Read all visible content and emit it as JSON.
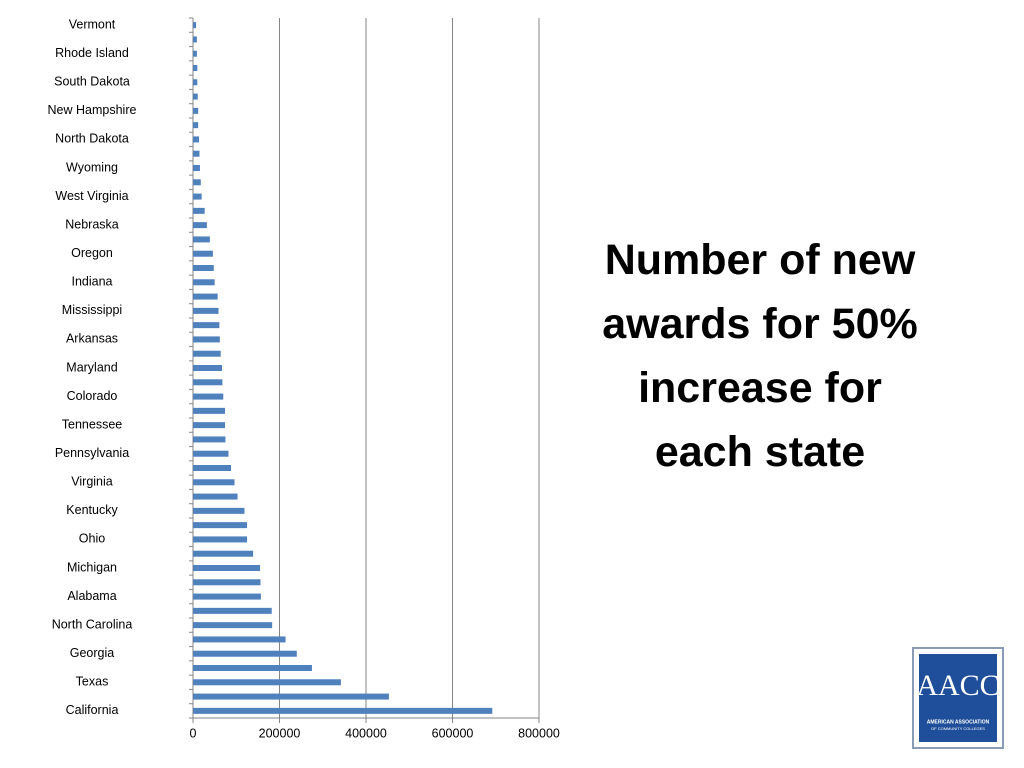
{
  "chart_data": {
    "type": "barh",
    "title": "Number of new awards for 50% increase for each state",
    "categories": [
      "Vermont",
      null,
      "Rhode Island",
      null,
      "South Dakota",
      null,
      "New Hampshire",
      null,
      "North Dakota",
      null,
      "Wyoming",
      null,
      "West Virginia",
      null,
      "Nebraska",
      null,
      "Oregon",
      null,
      "Indiana",
      null,
      "Mississippi",
      null,
      "Arkansas",
      null,
      "Maryland",
      null,
      "Colorado",
      null,
      "Tennessee",
      null,
      "Pennsylvania",
      null,
      "Virginia",
      null,
      "Kentucky",
      null,
      "Ohio",
      null,
      "Michigan",
      null,
      "Alabama",
      null,
      "North Carolina",
      null,
      "Georgia",
      null,
      "Texas",
      null,
      "California"
    ],
    "values": [
      7000,
      9000,
      9000,
      10000,
      10000,
      11000,
      12000,
      12000,
      14000,
      15000,
      16000,
      18000,
      20000,
      27000,
      32000,
      39000,
      46000,
      48000,
      50000,
      57000,
      59000,
      61000,
      62000,
      64000,
      67000,
      68000,
      70000,
      74000,
      74000,
      75000,
      82000,
      88000,
      96000,
      103000,
      119000,
      125000,
      125000,
      139000,
      155000,
      156000,
      157000,
      182000,
      183000,
      214000,
      240000,
      275000,
      342000,
      453000,
      692000
    ],
    "color": "#4f81bd",
    "xlim": [
      0,
      800000
    ],
    "xticks": [
      0,
      200000,
      400000,
      600000,
      800000
    ],
    "grid": true
  },
  "logo": {
    "mark": "AACC",
    "name": "AMERICAN ASSOCIATION",
    "subname": "OF COMMUNITY COLLEGES"
  }
}
